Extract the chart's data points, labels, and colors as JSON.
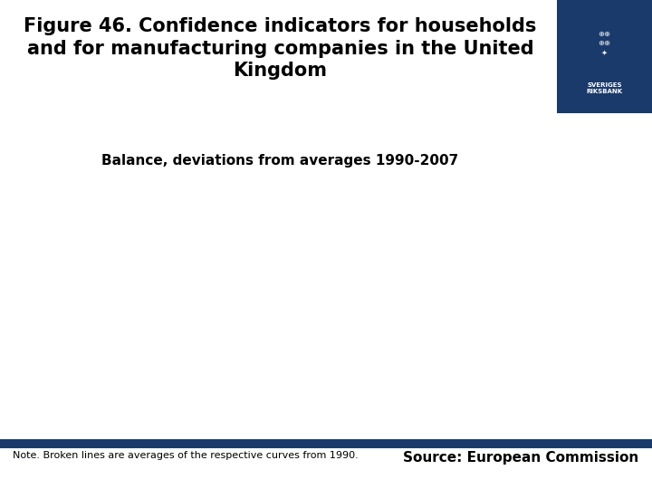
{
  "title_line1": "Figure 46. Confidence indicators for households",
  "title_line2": "and for manufacturing companies in the United",
  "title_line3": "Kingdom",
  "subtitle": "Balance, deviations from averages 1990-2007",
  "note_text": "Note. Broken lines are averages of the respective curves from 1990.",
  "source_text": "Source: European Commission",
  "background_color": "#ffffff",
  "title_color": "#000000",
  "subtitle_color": "#000000",
  "bar_color": "#1a3a6b",
  "logo_color": "#1a3a6b",
  "note_color": "#000000",
  "source_color": "#000000",
  "title_fontsize": 15,
  "subtitle_fontsize": 11,
  "note_fontsize": 8,
  "source_fontsize": 11
}
